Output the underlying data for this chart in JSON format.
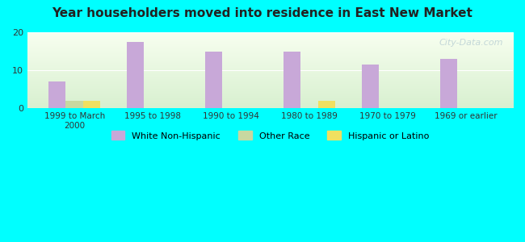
{
  "title": "Year householders moved into residence in East New Market",
  "background_color": "#00FFFF",
  "categories": [
    "1999 to March\n2000",
    "1995 to 1998",
    "1990 to 1994",
    "1980 to 1989",
    "1970 to 1979",
    "1969 or earlier"
  ],
  "series": [
    {
      "name": "White Non-Hispanic",
      "color": "#c8a8d8",
      "values": [
        7,
        17.5,
        15,
        15,
        11.5,
        13
      ]
    },
    {
      "name": "Other Race",
      "color": "#c8d8a0",
      "values": [
        2,
        0,
        0,
        0,
        0,
        0
      ]
    },
    {
      "name": "Hispanic or Latino",
      "color": "#f0e060",
      "values": [
        2,
        0,
        0,
        2,
        0,
        0
      ]
    }
  ],
  "ylim": [
    0,
    20
  ],
  "yticks": [
    0,
    10,
    20
  ],
  "watermark": "City-Data.com",
  "legend_colors": [
    "#c8a8d8",
    "#c8d8a0",
    "#f0e060"
  ],
  "legend_labels": [
    "White Non-Hispanic",
    "Other Race",
    "Hispanic or Latino"
  ]
}
